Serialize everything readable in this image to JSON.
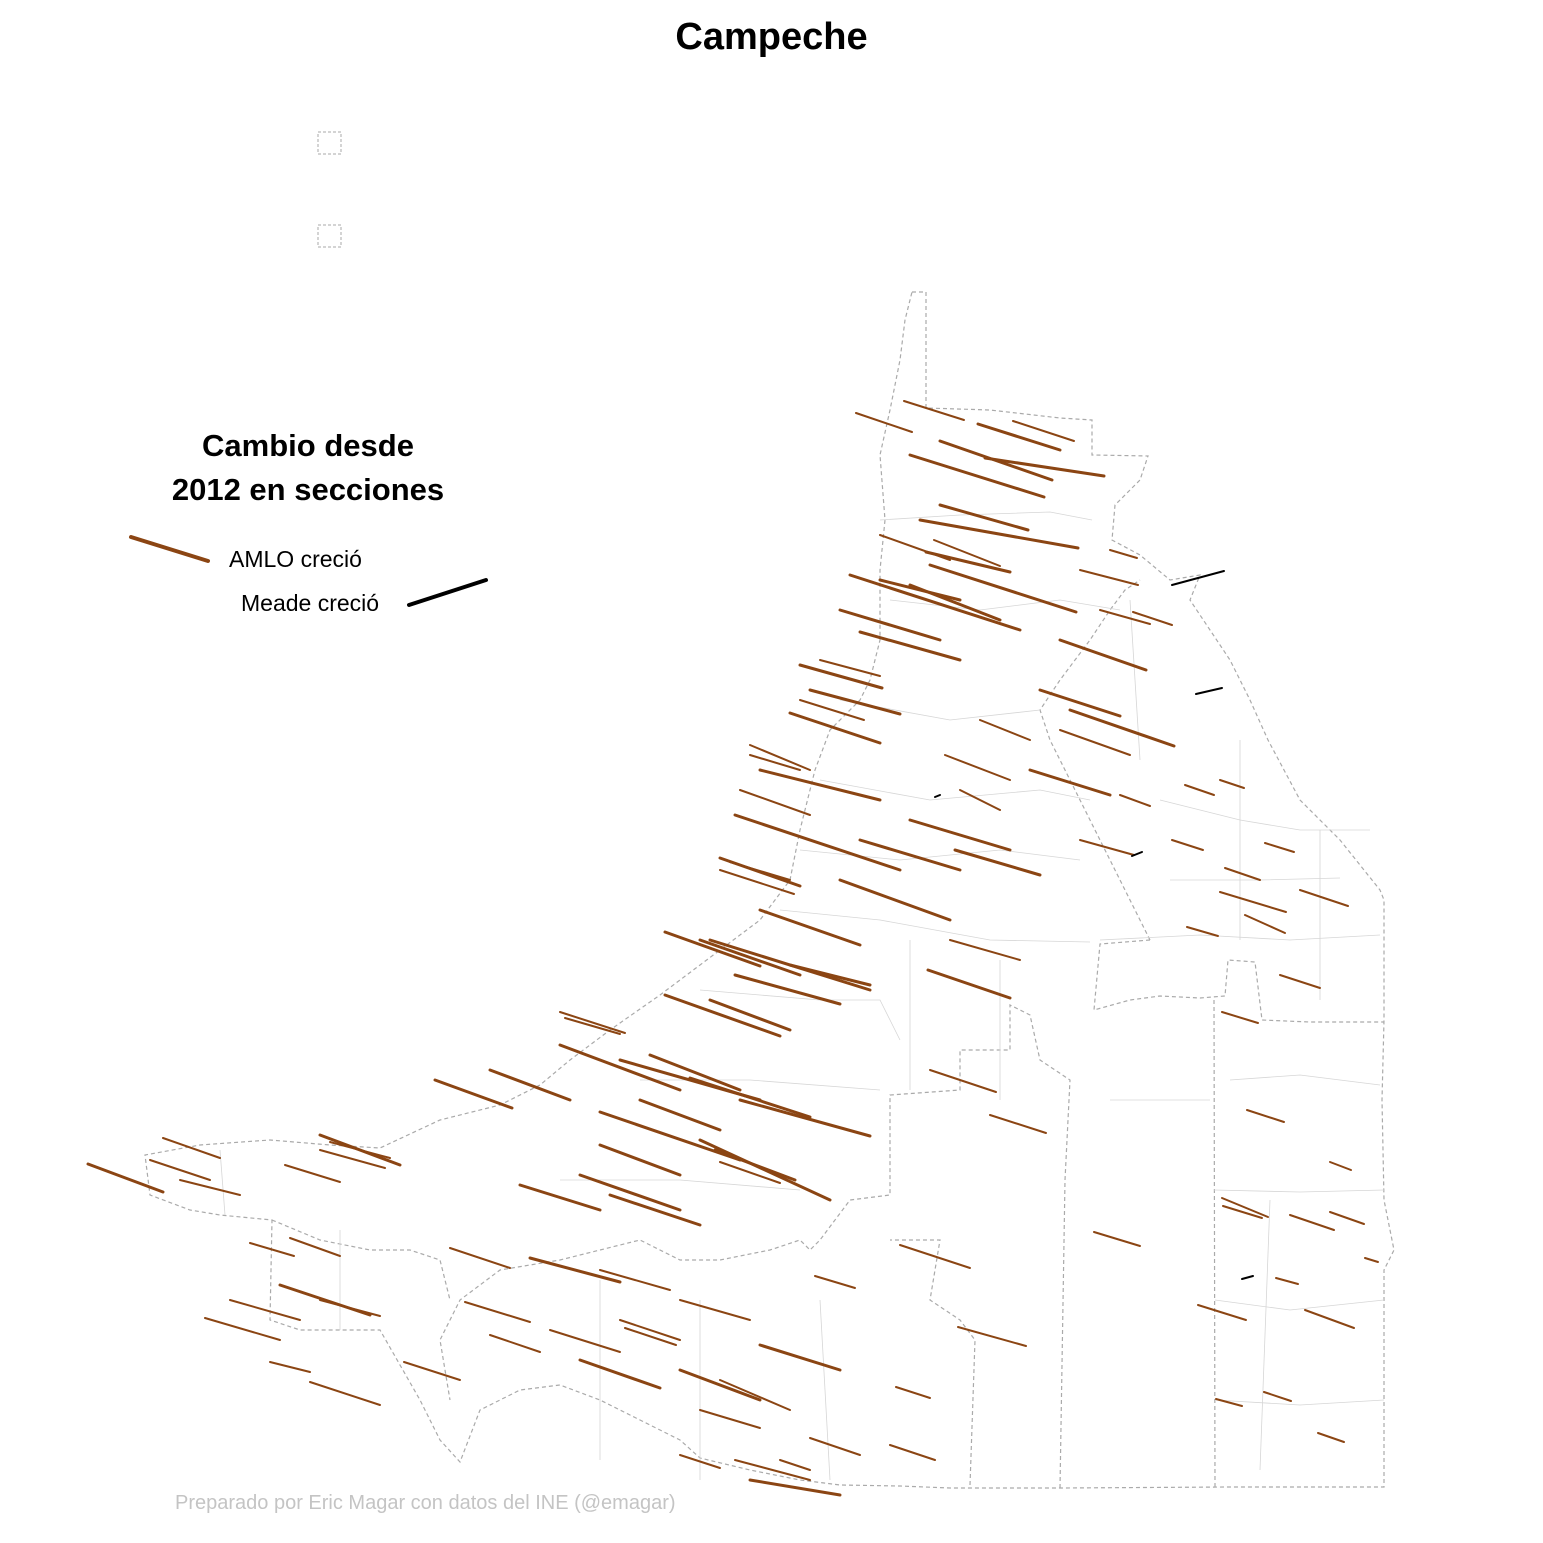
{
  "title": "Campeche",
  "legend": {
    "title_line1": "Cambio desde",
    "title_line2": "2012 en secciones",
    "items": [
      {
        "label": "AMLO creció",
        "color": "#8B4513"
      },
      {
        "label": "Meade creció",
        "color": "#000000"
      }
    ]
  },
  "credit": "Preparado por Eric Magar con datos del INE (@emagar)",
  "colors": {
    "amlo": "#8B4513",
    "meade": "#000000",
    "state_border": "#aaaaaa",
    "municipal_border": "#d6d6d6"
  }
}
